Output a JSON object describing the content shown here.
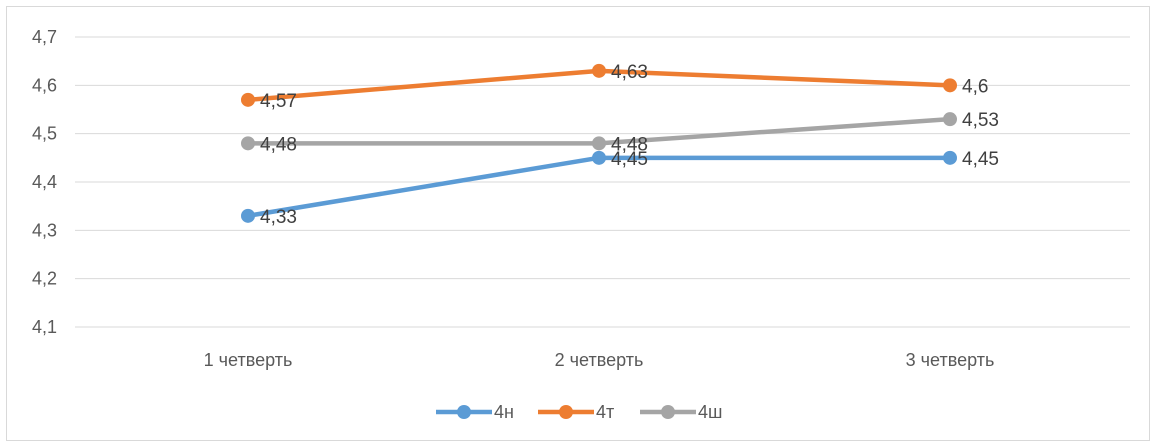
{
  "chart_data": {
    "type": "line",
    "title": "",
    "xlabel": "",
    "ylabel": "",
    "categories": [
      "1 четверть",
      "2 четверть",
      "3 четверть"
    ],
    "ylim": [
      4.1,
      4.7
    ],
    "yticks": [
      "4,1",
      "4,2",
      "4,3",
      "4,4",
      "4,5",
      "4,6",
      "4,7"
    ],
    "ytick_values": [
      4.1,
      4.2,
      4.3,
      4.4,
      4.5,
      4.6,
      4.7
    ],
    "grid": "horizontal",
    "legend_position": "bottom",
    "series": [
      {
        "name": "4н",
        "color": "#5b9bd5",
        "values": [
          4.33,
          4.45,
          4.45
        ],
        "labels": [
          "4,33",
          "4,45",
          "4,45"
        ]
      },
      {
        "name": "4т",
        "color": "#ed7d31",
        "values": [
          4.57,
          4.63,
          4.6
        ],
        "labels": [
          "4,57",
          "4,63",
          "4,6"
        ]
      },
      {
        "name": "4ш",
        "color": "#a5a5a5",
        "values": [
          4.48,
          4.48,
          4.53
        ],
        "labels": [
          "4,48",
          "4,48",
          "4,53"
        ]
      }
    ]
  }
}
